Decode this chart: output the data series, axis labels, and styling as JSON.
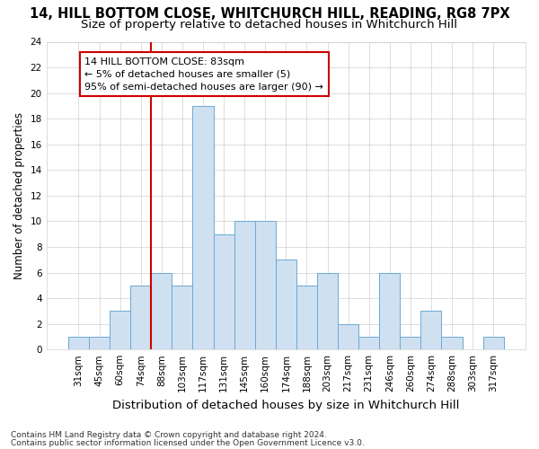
{
  "title1": "14, HILL BOTTOM CLOSE, WHITCHURCH HILL, READING, RG8 7PX",
  "title2": "Size of property relative to detached houses in Whitchurch Hill",
  "xlabel": "Distribution of detached houses by size in Whitchurch Hill",
  "ylabel": "Number of detached properties",
  "bar_color": "#cfe0f0",
  "bar_edge_color": "#6aaad4",
  "categories": [
    "31sqm",
    "45sqm",
    "60sqm",
    "74sqm",
    "88sqm",
    "103sqm",
    "117sqm",
    "131sqm",
    "145sqm",
    "160sqm",
    "174sqm",
    "188sqm",
    "203sqm",
    "217sqm",
    "231sqm",
    "246sqm",
    "260sqm",
    "274sqm",
    "288sqm",
    "303sqm",
    "317sqm"
  ],
  "values": [
    1,
    1,
    3,
    5,
    6,
    5,
    19,
    9,
    10,
    10,
    7,
    5,
    6,
    2,
    1,
    6,
    1,
    3,
    1,
    0,
    1
  ],
  "vline_color": "#cc0000",
  "vline_x_index": 4,
  "annotation_line1": "14 HILL BOTTOM CLOSE: 83sqm",
  "annotation_line2": "← 5% of detached houses are smaller (5)",
  "annotation_line3": "95% of semi-detached houses are larger (90) →",
  "annotation_box_color": "#ffffff",
  "annotation_box_edge_color": "#cc0000",
  "ylim": [
    0,
    24
  ],
  "yticks": [
    0,
    2,
    4,
    6,
    8,
    10,
    12,
    14,
    16,
    18,
    20,
    22,
    24
  ],
  "footnote1": "Contains HM Land Registry data © Crown copyright and database right 2024.",
  "footnote2": "Contains public sector information licensed under the Open Government Licence v3.0.",
  "bg_color": "#ffffff",
  "plot_bg_color": "#ffffff",
  "grid_color": "#d0d0d0",
  "title1_fontsize": 10.5,
  "title2_fontsize": 9.5,
  "xlabel_fontsize": 9.5,
  "ylabel_fontsize": 8.5,
  "tick_fontsize": 7.5,
  "annot_fontsize": 8,
  "footnote_fontsize": 6.5
}
